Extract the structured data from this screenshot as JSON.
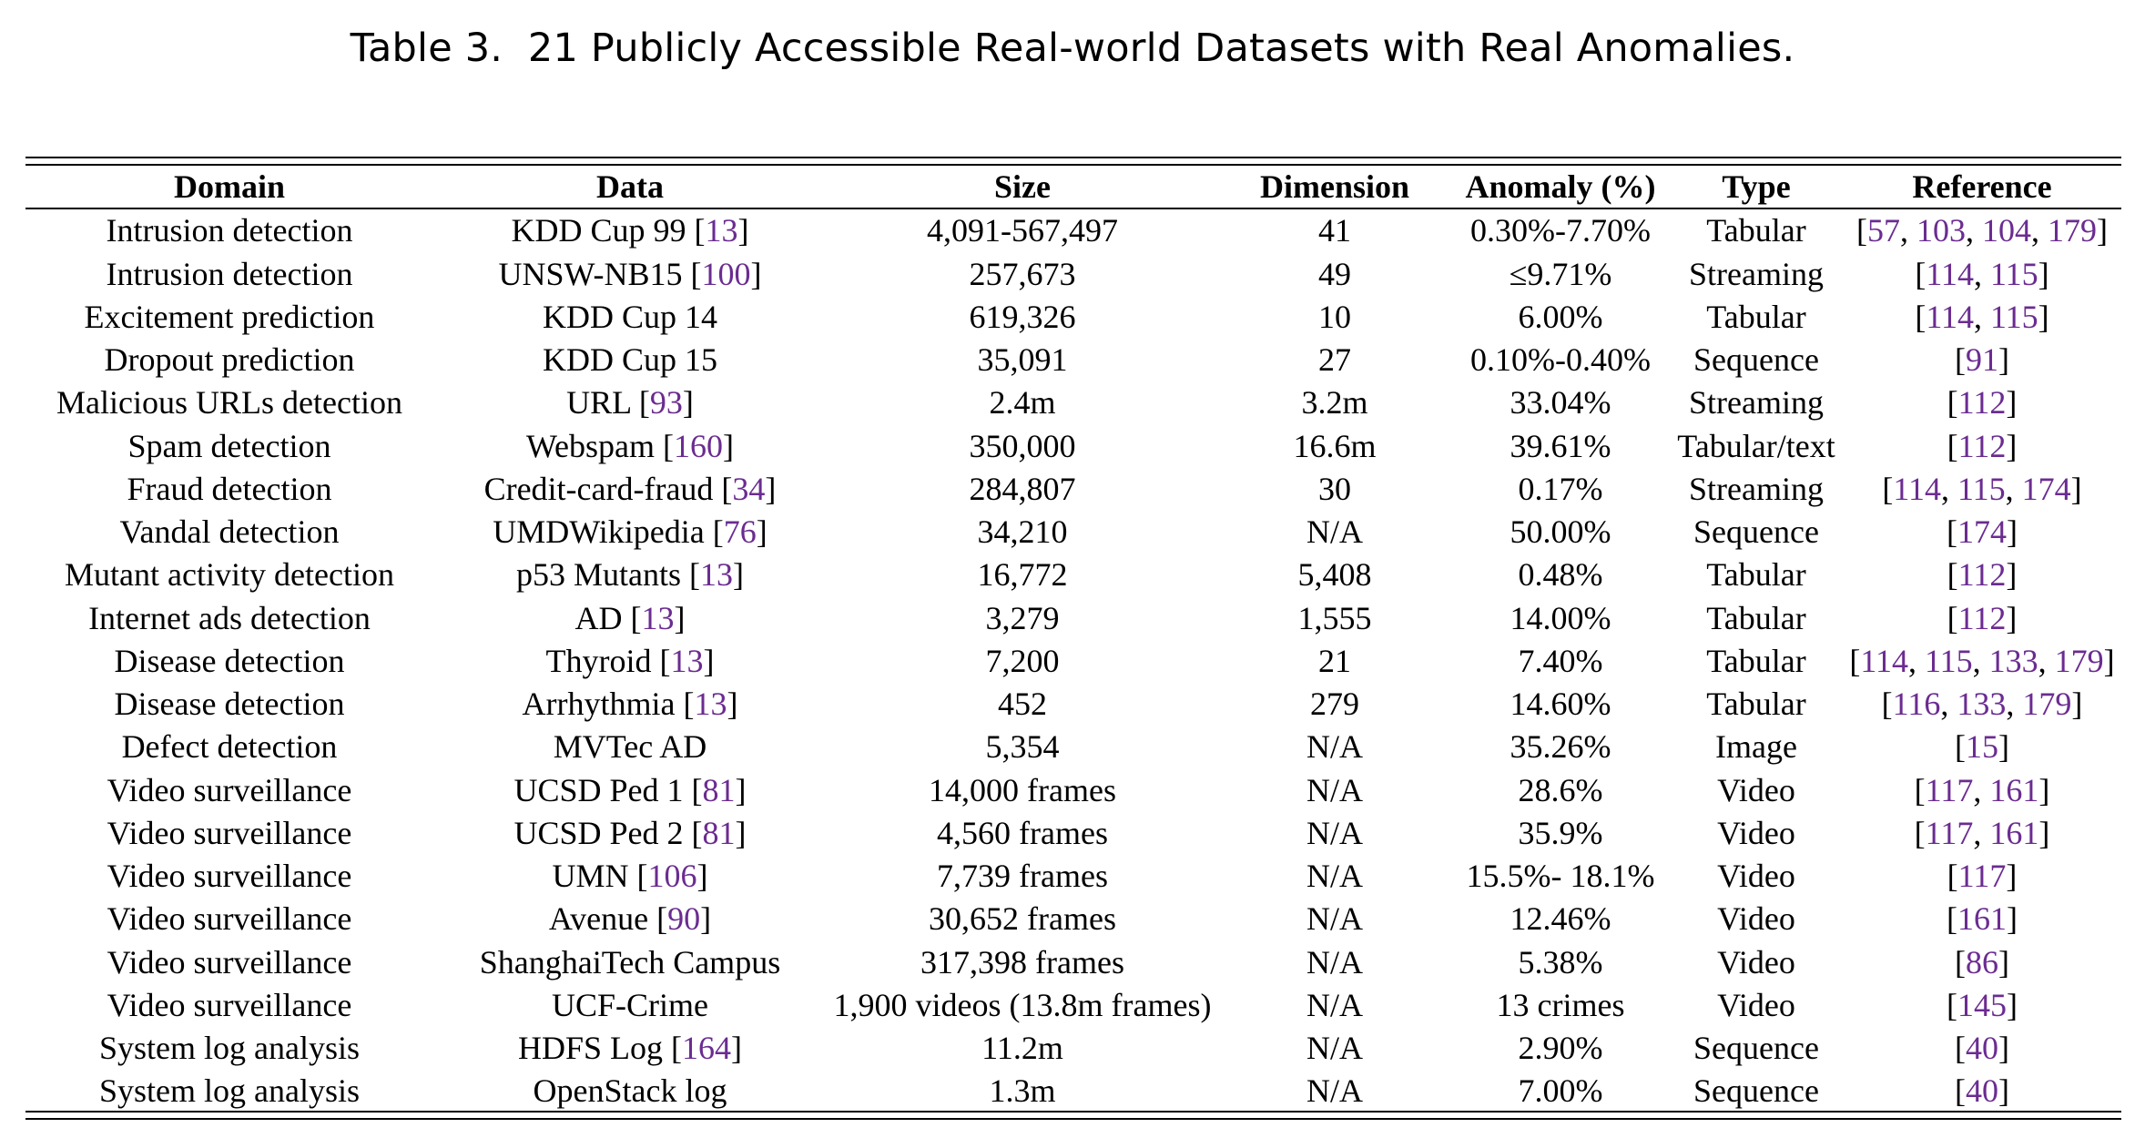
{
  "caption": "Table 3.  21 Publicly Accessible Real-world Datasets with Real Anomalies.",
  "headers": [
    "Domain",
    "Data",
    "Size",
    "Dimension",
    "Anomaly (%)",
    "Type",
    "Reference"
  ],
  "colors": {
    "citation": "#6b2c91",
    "text": "#000000"
  },
  "rows": [
    {
      "domain": "Intrusion detection",
      "data": "KDD Cup 99",
      "data_refs": [
        "13"
      ],
      "size": "4,091-567,497",
      "dimension": "41",
      "anomaly": "0.30%-7.70%",
      "type": "Tabular",
      "refs": [
        "57",
        "103",
        "104",
        "179"
      ]
    },
    {
      "domain": "Intrusion detection",
      "data": "UNSW-NB15",
      "data_refs": [
        "100"
      ],
      "size": "257,673",
      "dimension": "49",
      "anomaly": "≤9.71%",
      "type": "Streaming",
      "refs": [
        "114",
        "115"
      ]
    },
    {
      "domain": "Excitement prediction",
      "data": "KDD Cup 14",
      "data_refs": [],
      "size": "619,326",
      "dimension": "10",
      "anomaly": "6.00%",
      "type": "Tabular",
      "refs": [
        "114",
        "115"
      ]
    },
    {
      "domain": "Dropout prediction",
      "data": "KDD Cup 15",
      "data_refs": [],
      "size": "35,091",
      "dimension": "27",
      "anomaly": "0.10%-0.40%",
      "type": "Sequence",
      "refs": [
        "91"
      ]
    },
    {
      "domain": "Malicious URLs detection",
      "data": "URL",
      "data_refs": [
        "93"
      ],
      "size": "2.4m",
      "dimension": "3.2m",
      "anomaly": "33.04%",
      "type": "Streaming",
      "refs": [
        "112"
      ]
    },
    {
      "domain": "Spam detection",
      "data": "Webspam",
      "data_refs": [
        "160"
      ],
      "size": "350,000",
      "dimension": "16.6m",
      "anomaly": "39.61%",
      "type": "Tabular/text",
      "refs": [
        "112"
      ]
    },
    {
      "domain": "Fraud detection",
      "data": "Credit-card-fraud",
      "data_refs": [
        "34"
      ],
      "size": "284,807",
      "dimension": "30",
      "anomaly": "0.17%",
      "type": "Streaming",
      "refs": [
        "114",
        "115",
        "174"
      ]
    },
    {
      "domain": "Vandal detection",
      "data": "UMDWikipedia",
      "data_refs": [
        "76"
      ],
      "size": "34,210",
      "dimension": "N/A",
      "anomaly": "50.00%",
      "type": "Sequence",
      "refs": [
        "174"
      ]
    },
    {
      "domain": "Mutant activity detection",
      "data": "p53 Mutants",
      "data_refs": [
        "13"
      ],
      "size": "16,772",
      "dimension": "5,408",
      "anomaly": "0.48%",
      "type": "Tabular",
      "refs": [
        "112"
      ]
    },
    {
      "domain": "Internet ads detection",
      "data": "AD",
      "data_refs": [
        "13"
      ],
      "size": "3,279",
      "dimension": "1,555",
      "anomaly": "14.00%",
      "type": "Tabular",
      "refs": [
        "112"
      ]
    },
    {
      "domain": "Disease detection",
      "data": "Thyroid",
      "data_refs": [
        "13"
      ],
      "size": "7,200",
      "dimension": "21",
      "anomaly": "7.40%",
      "type": "Tabular",
      "refs": [
        "114",
        "115",
        "133",
        "179"
      ]
    },
    {
      "domain": "Disease detection",
      "data": "Arrhythmia",
      "data_refs": [
        "13"
      ],
      "size": "452",
      "dimension": "279",
      "anomaly": "14.60%",
      "type": "Tabular",
      "refs": [
        "116",
        "133",
        "179"
      ]
    },
    {
      "domain": "Defect detection",
      "data": "MVTec AD",
      "data_refs": [],
      "size": "5,354",
      "dimension": "N/A",
      "anomaly": "35.26%",
      "type": "Image",
      "refs": [
        "15"
      ]
    },
    {
      "domain": "Video surveillance",
      "data": "UCSD Ped 1",
      "data_refs": [
        "81"
      ],
      "size": "14,000 frames",
      "dimension": "N/A",
      "anomaly": "28.6%",
      "type": "Video",
      "refs": [
        "117",
        "161"
      ]
    },
    {
      "domain": "Video surveillance",
      "data": "UCSD Ped 2",
      "data_refs": [
        "81"
      ],
      "size": "4,560 frames",
      "dimension": "N/A",
      "anomaly": "35.9%",
      "type": "Video",
      "refs": [
        "117",
        "161"
      ]
    },
    {
      "domain": "Video surveillance",
      "data": "UMN",
      "data_refs": [
        "106"
      ],
      "size": "7,739 frames",
      "dimension": "N/A",
      "anomaly": "15.5%- 18.1%",
      "type": "Video",
      "refs": [
        "117"
      ]
    },
    {
      "domain": "Video surveillance",
      "data": "Avenue",
      "data_refs": [
        "90"
      ],
      "size": "30,652 frames",
      "dimension": "N/A",
      "anomaly": "12.46%",
      "type": "Video",
      "refs": [
        "161"
      ]
    },
    {
      "domain": "Video surveillance",
      "data": "ShanghaiTech Campus",
      "data_refs": [],
      "size": "317,398 frames",
      "dimension": "N/A",
      "anomaly": "5.38%",
      "type": "Video",
      "refs": [
        "86"
      ]
    },
    {
      "domain": "Video surveillance",
      "data": "UCF-Crime",
      "data_refs": [],
      "size": "1,900 videos (13.8m frames)",
      "dimension": "N/A",
      "anomaly": "13 crimes",
      "type": "Video",
      "refs": [
        "145"
      ]
    },
    {
      "domain": "System log analysis",
      "data": "HDFS Log",
      "data_refs": [
        "164"
      ],
      "size": "11.2m",
      "dimension": "N/A",
      "anomaly": "2.90%",
      "type": "Sequence",
      "refs": [
        "40"
      ]
    },
    {
      "domain": "System log analysis",
      "data": "OpenStack log",
      "data_refs": [],
      "size": "1.3m",
      "dimension": "N/A",
      "anomaly": "7.00%",
      "type": "Sequence",
      "refs": [
        "40"
      ]
    }
  ]
}
